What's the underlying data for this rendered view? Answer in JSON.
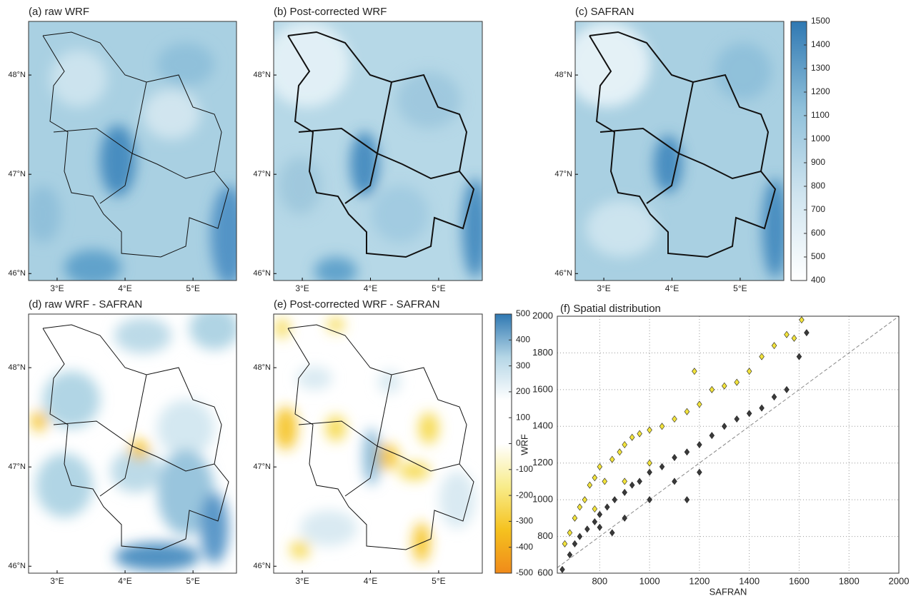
{
  "chart_data": [
    {
      "type": "map",
      "title": "(a) raw WRF",
      "xlim": [
        2.58,
        5.64
      ],
      "ylim": [
        45.93,
        48.54
      ],
      "xticks": [
        {
          "value": 3,
          "label": "3°E"
        },
        {
          "value": 4,
          "label": "4°E"
        },
        {
          "value": 5,
          "label": "5°E"
        }
      ],
      "yticks": [
        {
          "value": 46,
          "label": "46°N"
        },
        {
          "value": 47,
          "label": "47°N"
        },
        {
          "value": 48,
          "label": "48°N"
        }
      ]
    },
    {
      "type": "map",
      "title": "(b) Post-corrected WRF",
      "xlim": [
        2.58,
        5.64
      ],
      "ylim": [
        45.93,
        48.54
      ],
      "xticks": [
        {
          "value": 3,
          "label": "3°E"
        },
        {
          "value": 4,
          "label": "4°E"
        },
        {
          "value": 5,
          "label": "5°E"
        }
      ],
      "yticks": [
        {
          "value": 46,
          "label": "46°N"
        },
        {
          "value": 47,
          "label": "47°N"
        },
        {
          "value": 48,
          "label": "48°N"
        }
      ]
    },
    {
      "type": "map",
      "title": "(c) SAFRAN",
      "xlim": [
        2.58,
        5.64
      ],
      "ylim": [
        45.93,
        48.54
      ],
      "xticks": [
        {
          "value": 3,
          "label": "3°E"
        },
        {
          "value": 4,
          "label": "4°E"
        },
        {
          "value": 5,
          "label": "5°E"
        }
      ],
      "yticks": [
        {
          "value": 46,
          "label": "46°N"
        },
        {
          "value": 47,
          "label": "47°N"
        },
        {
          "value": 48,
          "label": "48°N"
        }
      ],
      "colorbar": {
        "lim": [
          400,
          1500
        ],
        "ticks": [
          400,
          500,
          600,
          700,
          800,
          900,
          1000,
          1100,
          1200,
          1300,
          1400,
          1500
        ],
        "colors": [
          "#ffffff",
          "#cfe4ef",
          "#8fc0da",
          "#2f78b2"
        ]
      }
    },
    {
      "type": "map",
      "title": "(d) raw WRF - SAFRAN",
      "xlim": [
        2.58,
        5.64
      ],
      "ylim": [
        45.93,
        48.54
      ],
      "xticks": [
        {
          "value": 3,
          "label": "3°E"
        },
        {
          "value": 4,
          "label": "4°E"
        },
        {
          "value": 5,
          "label": "5°E"
        }
      ],
      "yticks": [
        {
          "value": 46,
          "label": "46°N"
        },
        {
          "value": 47,
          "label": "47°N"
        },
        {
          "value": 48,
          "label": "48°N"
        }
      ]
    },
    {
      "type": "map",
      "title": "(e) Post-corrected WRF - SAFRAN",
      "xlim": [
        2.58,
        5.64
      ],
      "ylim": [
        45.93,
        48.54
      ],
      "xticks": [
        {
          "value": 3,
          "label": "3°E"
        },
        {
          "value": 4,
          "label": "4°E"
        },
        {
          "value": 5,
          "label": "5°E"
        }
      ],
      "yticks": [
        {
          "value": 46,
          "label": "46°N"
        },
        {
          "value": 47,
          "label": "47°N"
        },
        {
          "value": 48,
          "label": "48°N"
        }
      ],
      "colorbar": {
        "lim": [
          -500,
          500
        ],
        "ticks": [
          -500,
          -400,
          -300,
          -200,
          -100,
          0,
          100,
          200,
          300,
          400,
          500
        ],
        "colors": [
          "#f08a1a",
          "#f5c21f",
          "#f8ec8a",
          "#ffffff",
          "#ffffff",
          "#b5d6e6",
          "#2f78b2"
        ]
      }
    },
    {
      "type": "scatter",
      "title": "(f) Spatial distribution",
      "x_label": "SAFRAN",
      "y_label": "WRF",
      "xlim": [
        630,
        2000
      ],
      "ylim": [
        600,
        2000
      ],
      "grid": true,
      "xticks": [
        800,
        1000,
        1200,
        1400,
        1600,
        1800,
        2000
      ],
      "yticks": [
        600,
        800,
        1000,
        1200,
        1400,
        1600,
        1800,
        2000
      ],
      "series": [
        {
          "color": "#f2e33c",
          "x": [
            660,
            680,
            700,
            720,
            740,
            760,
            780,
            800,
            820,
            850,
            880,
            900,
            930,
            960,
            1000,
            1050,
            1100,
            1150,
            1180,
            1200,
            1250,
            1300,
            1350,
            1400,
            1450,
            1500,
            1550,
            1580,
            1610,
            1000,
            900,
            780
          ],
          "values": [
            760,
            820,
            900,
            960,
            1000,
            1080,
            1120,
            1180,
            1100,
            1220,
            1260,
            1300,
            1340,
            1360,
            1380,
            1400,
            1440,
            1480,
            1700,
            1520,
            1600,
            1620,
            1640,
            1700,
            1780,
            1840,
            1900,
            1880,
            1980,
            1200,
            1100,
            950
          ]
        },
        {
          "color": "#3a3a3a",
          "x": [
            650,
            680,
            700,
            720,
            750,
            780,
            800,
            830,
            860,
            900,
            930,
            960,
            1000,
            1050,
            1100,
            1150,
            1200,
            1250,
            1300,
            1350,
            1400,
            1450,
            1500,
            1550,
            1600,
            1630,
            900,
            1000,
            1100,
            800,
            1200,
            1150,
            850
          ],
          "values": [
            620,
            700,
            760,
            800,
            840,
            880,
            920,
            960,
            1000,
            1040,
            1080,
            1100,
            1150,
            1180,
            1230,
            1260,
            1300,
            1350,
            1400,
            1440,
            1470,
            1500,
            1560,
            1600,
            1780,
            1910,
            900,
            1000,
            1100,
            850,
            1150,
            1000,
            820
          ]
        }
      ]
    }
  ]
}
